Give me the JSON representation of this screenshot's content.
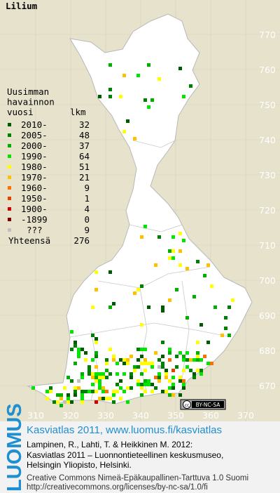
{
  "title": "Lilium",
  "legend": {
    "heading": [
      "Uusimman",
      "havainnon",
      "vuosi"
    ],
    "count_header": "lkm",
    "rows": [
      {
        "label": "2010-",
        "count": 32,
        "color": "#005a00"
      },
      {
        "label": "2005-",
        "count": 48,
        "color": "#008000"
      },
      {
        "label": "2000-",
        "count": 37,
        "color": "#00b000"
      },
      {
        "label": "1990-",
        "count": 64,
        "color": "#00e600"
      },
      {
        "label": "1980-",
        "count": 51,
        "color": "#ffff00"
      },
      {
        "label": "1970-",
        "count": 21,
        "color": "#ffc000"
      },
      {
        "label": "1960-",
        "count": 9,
        "color": "#ff7000"
      },
      {
        "label": "1950-",
        "count": 1,
        "color": "#e84000"
      },
      {
        "label": "1900-",
        "count": 4,
        "color": "#d00000"
      },
      {
        "label": "-1899",
        "count": 0,
        "color": "#800000"
      },
      {
        "label": "???",
        "count": 9,
        "color": "#c0c0c0"
      }
    ],
    "total_label": "Yhteensä",
    "total": 276
  },
  "grid": {
    "y_labels": [
      770,
      760,
      750,
      740,
      730,
      720,
      710,
      700,
      690,
      680,
      670
    ],
    "x_labels": [
      310,
      320,
      330,
      340,
      350,
      360,
      370
    ]
  },
  "license_badge": "BY-NC-SA",
  "footer": {
    "logo": "LUOMUS",
    "headline": "Kasviatlas 2011, www.luomus.fi/kasviatlas",
    "citation": [
      "Lampinen, R., Lahti, T. & Heikkinen M. 2012:",
      "Kasviatlas 2011 – Luonnontieteellinen keskusmuseo,",
      "Helsingin Yliopisto, Helsinki."
    ],
    "license": "Creative Commons Nimeä-Epäkaupallinen-Tarttuva 1.0 Suomi",
    "license_url": "http://creativecommons.org/licenses/by-nc-sa/1.0/fi"
  }
}
